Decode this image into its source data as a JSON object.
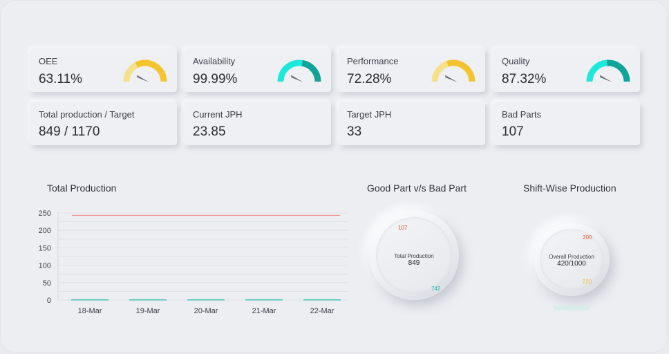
{
  "kpis": [
    {
      "label": "OEE",
      "value": "63.11%",
      "percent": 63.11,
      "color": "#f4c430",
      "track": "#f7e08a"
    },
    {
      "label": "Availability",
      "value": "99.99%",
      "percent": 99.99,
      "color": "#0fa39a",
      "track": "#1ee8dc"
    },
    {
      "label": "Performance",
      "value": "72.28%",
      "percent": 72.28,
      "color": "#f4c430",
      "track": "#f7e08a"
    },
    {
      "label": "Quality",
      "value": "87.32%",
      "percent": 87.32,
      "color": "#0fa39a",
      "track": "#1ee8dc"
    }
  ],
  "stats": [
    {
      "label": "Total production / Target",
      "value": "849 / 1170"
    },
    {
      "label": "Current JPH",
      "value": "23.85"
    },
    {
      "label": "Target JPH",
      "value": "33"
    },
    {
      "label": "Bad Parts",
      "value": "107"
    }
  ],
  "total_production": {
    "title": "Total Production",
    "chart_data": {
      "type": "bar",
      "categories": [
        "18-Mar",
        "19-Mar",
        "20-Mar",
        "21-Mar",
        "22-Mar"
      ],
      "values": [
        0,
        0,
        0,
        0,
        0
      ],
      "target": 243,
      "ylim": [
        0,
        250
      ],
      "yticks": [
        0,
        25,
        50,
        75,
        100,
        125,
        150,
        175,
        200,
        225,
        250
      ],
      "ytick_labels": [
        "0",
        "50",
        "100",
        "150",
        "200",
        "250"
      ],
      "bar_color": "#1fb6a6",
      "target_color": "#f28b8b"
    }
  },
  "good_bad": {
    "title": "Good Part v/s Bad Part",
    "center_label": "Total Production",
    "center_value": "849",
    "bad_value": "107",
    "good_value": "742",
    "bad_color": "#e8512a",
    "good_color": "#18b8b0"
  },
  "shift_wise": {
    "title": "Shift-Wise Production",
    "center_label": "Overall Production",
    "center_value": "420/1000",
    "shift_a_value": "200",
    "shift_b_value": "220",
    "shift_a_color": "#e8512a",
    "shift_b_color": "#f1b928",
    "base_color": "#d4ece8"
  }
}
